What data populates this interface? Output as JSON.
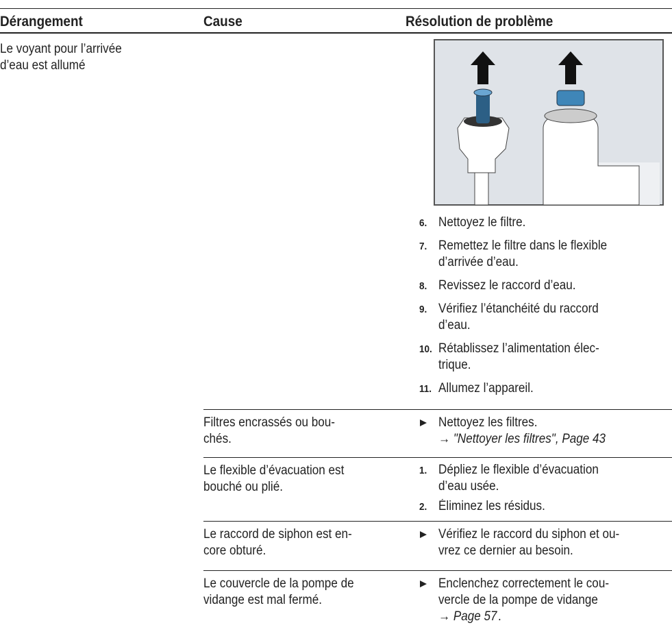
{
  "header": {
    "col1": "Dérangement",
    "col2": "Cause",
    "col3": "Résolution de problème"
  },
  "rows": [
    {
      "fault": [
        "Le voyant pour l’arrivée",
        "d’eau est allumé"
      ],
      "steps": [
        {
          "number": "6.",
          "lines": [
            "Nettoyez le filtre."
          ]
        },
        {
          "number": "7.",
          "lines": [
            "Remettez le filtre dans le flexible",
            "d’arrivée d’eau."
          ]
        },
        {
          "number": "8.",
          "lines": [
            "Revissez le raccord d’eau."
          ]
        },
        {
          "number": "9.",
          "lines": [
            "Vérifiez l’étanchéité du raccord",
            "d’eau."
          ]
        },
        {
          "number": "10.",
          "lines": [
            "Rétablissez l’alimentation élec-",
            "trique."
          ]
        },
        {
          "number": "11.",
          "lines": [
            "Allumez l’appareil."
          ]
        }
      ]
    },
    {
      "cause": [
        "Filtres encrassés ou bou-",
        "chés."
      ],
      "action": [
        "Nettoyez les filtres."
      ],
      "link": "→ \"Nettoyer les filtres\", Page 43"
    },
    {
      "cause": [
        "Le flexible d’évacuation est",
        "bouché ou plié."
      ],
      "steps": [
        {
          "number": "1.",
          "lines": [
            "Dépliez le flexible d’évacuation",
            "d’eau usée."
          ]
        },
        {
          "number": "2.",
          "lines": [
            "Éliminez les résidus."
          ]
        }
      ]
    },
    {
      "cause": [
        "Le raccord de siphon est en-",
        "core obturé."
      ],
      "action": [
        "Vérifiez le raccord du siphon et ou-",
        "vrez ce dernier au besoin."
      ]
    },
    {
      "cause": [
        "Le couvercle de la pompe de",
        "vidange est mal fermé."
      ],
      "action": [
        "Enclenchez correctement le cou-",
        "vercle de la pompe de vidange"
      ],
      "link": "→ Page 57",
      "after_link": "."
    }
  ]
}
